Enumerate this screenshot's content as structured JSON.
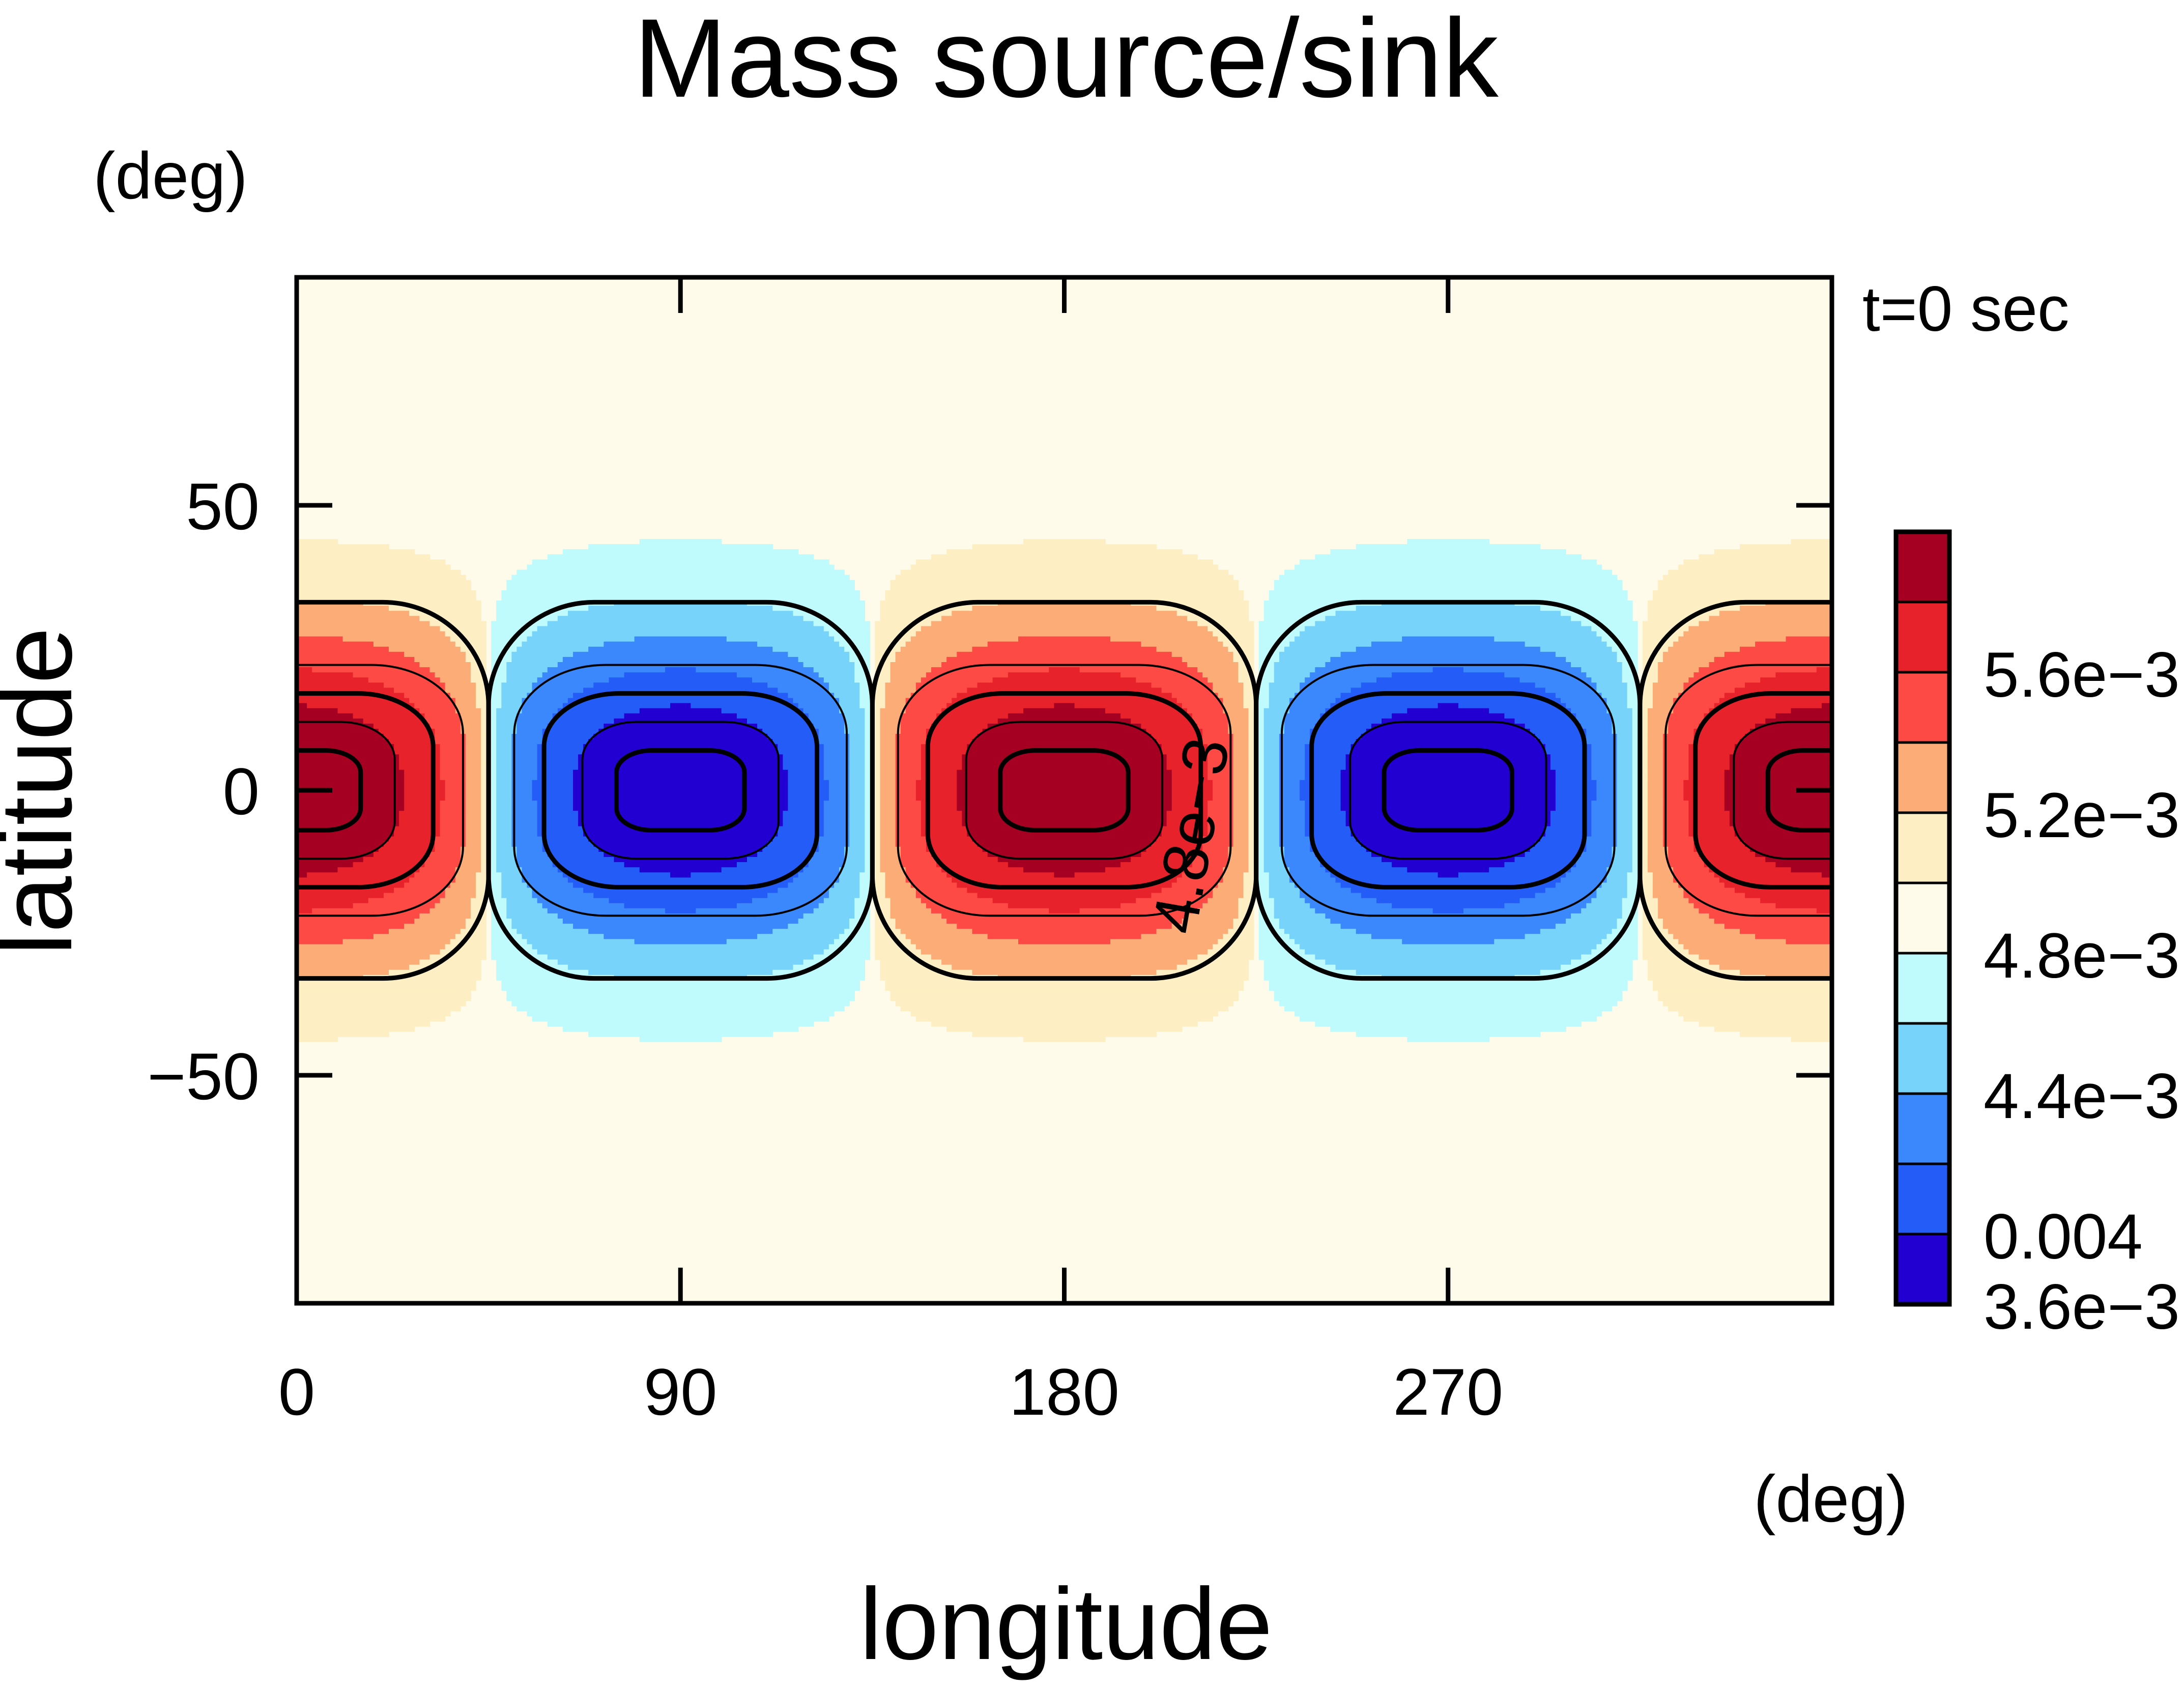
{
  "chart_data": {
    "type": "heatmap",
    "title": "Mass source/sink",
    "xlabel": "longitude",
    "ylabel": "latitude",
    "x_units": "(deg)",
    "y_units": "(deg)",
    "time_label": "t=0 sec",
    "xlim": [
      0,
      360
    ],
    "ylim": [
      -90,
      90
    ],
    "x_ticks": [
      0,
      90,
      180,
      270
    ],
    "x_tick_labels": [
      "0",
      "90",
      "180",
      "270"
    ],
    "y_ticks": [
      50,
      0,
      -50
    ],
    "y_tick_labels": [
      "50",
      "0",
      "−50"
    ],
    "field": {
      "description": "background 4.8e-3 with alternating highs (lon 0,180,360) and lows (lon 90,270) centred on equator",
      "base": 0.0048,
      "amplitude": 0.0012,
      "zonal_wavenumber": 2,
      "centers": [
        {
          "lon": 0,
          "lat": 0,
          "sign": 1
        },
        {
          "lon": 90,
          "lat": 0,
          "sign": -1
        },
        {
          "lon": 180,
          "lat": 0,
          "sign": 1
        },
        {
          "lon": 270,
          "lat": 0,
          "sign": -1
        },
        {
          "lon": 360,
          "lat": 0,
          "sign": 1
        }
      ]
    },
    "contour_label": "4.8e−3",
    "colorbar": {
      "colors_top_to_bottom": [
        "#a50021",
        "#e8222b",
        "#fe4a45",
        "#fbac77",
        "#fdefc3",
        "#fefbea",
        "#bffafc",
        "#78d3fa",
        "#3a88fc",
        "#245cf7",
        "#2100d1"
      ],
      "tick_labels": [
        "5.6e−3",
        "5.2e−3",
        "4.8e−3",
        "4.4e−3",
        "0.004",
        "3.6e−3"
      ]
    }
  }
}
